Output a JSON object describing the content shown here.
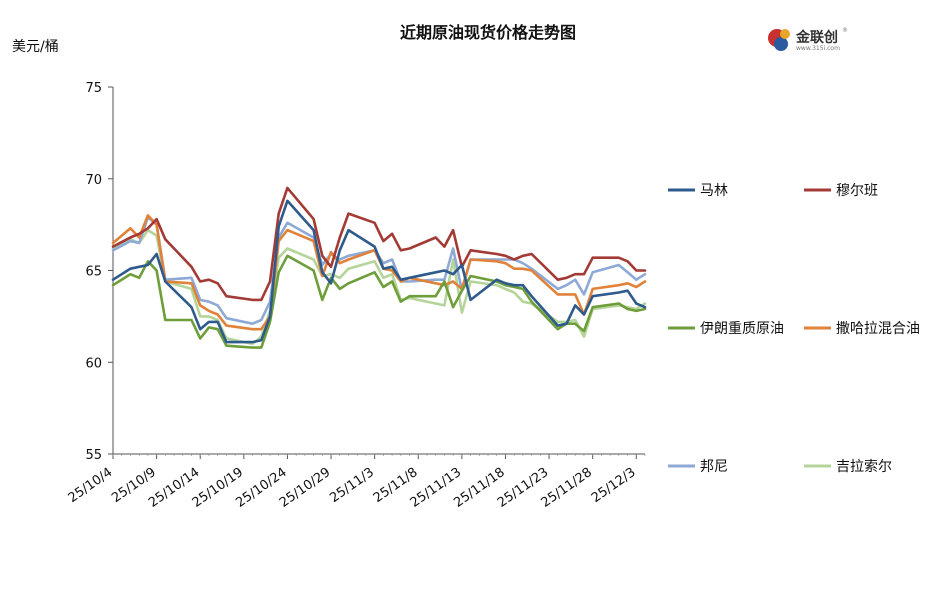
{
  "chart_data": {
    "type": "line",
    "title": "近期原油现货价格走势图",
    "ylabel": "美元/桶",
    "xlabel": "",
    "ylim": [
      55,
      75
    ],
    "yticks": [
      55,
      60,
      65,
      70,
      75
    ],
    "x_range": [
      "2025-10-04",
      "2025-12-04"
    ],
    "xticks": [
      {
        "date": "2025-10-04",
        "label": "25/10/4"
      },
      {
        "date": "2025-10-09",
        "label": "25/10/9"
      },
      {
        "date": "2025-10-14",
        "label": "25/10/14"
      },
      {
        "date": "2025-10-19",
        "label": "25/10/19"
      },
      {
        "date": "2025-10-24",
        "label": "25/10/24"
      },
      {
        "date": "2025-10-29",
        "label": "25/10/29"
      },
      {
        "date": "2025-11-03",
        "label": "25/11/3"
      },
      {
        "date": "2025-11-08",
        "label": "25/11/8"
      },
      {
        "date": "2025-11-13",
        "label": "25/11/13"
      },
      {
        "date": "2025-11-18",
        "label": "25/11/18"
      },
      {
        "date": "2025-11-23",
        "label": "25/11/23"
      },
      {
        "date": "2025-11-28",
        "label": "25/11/28"
      },
      {
        "date": "2025-12-03",
        "label": "25/12/3"
      }
    ],
    "grid": false,
    "legend_position": "right",
    "x": [
      "2025-10-04",
      "2025-10-06",
      "2025-10-07",
      "2025-10-08",
      "2025-10-09",
      "2025-10-10",
      "2025-10-13",
      "2025-10-14",
      "2025-10-15",
      "2025-10-16",
      "2025-10-17",
      "2025-10-20",
      "2025-10-21",
      "2025-10-22",
      "2025-10-23",
      "2025-10-24",
      "2025-10-27",
      "2025-10-28",
      "2025-10-29",
      "2025-10-30",
      "2025-10-31",
      "2025-11-03",
      "2025-11-04",
      "2025-11-05",
      "2025-11-06",
      "2025-11-07",
      "2025-11-10",
      "2025-11-11",
      "2025-11-12",
      "2025-11-13",
      "2025-11-14",
      "2025-11-17",
      "2025-11-18",
      "2025-11-19",
      "2025-11-20",
      "2025-11-21",
      "2025-11-24",
      "2025-11-25",
      "2025-11-26",
      "2025-11-27",
      "2025-11-28",
      "2025-12-01",
      "2025-12-02",
      "2025-12-03",
      "2025-12-04"
    ],
    "series": [
      {
        "name": "马林",
        "color": "#2e5a8c",
        "values": [
          64.5,
          65.1,
          65.2,
          65.3,
          65.9,
          64.4,
          63.0,
          61.8,
          62.2,
          62.2,
          61.1,
          61.1,
          61.2,
          62.5,
          67.4,
          68.8,
          67.2,
          64.9,
          64.3,
          66.1,
          67.2,
          66.3,
          65.1,
          65.2,
          64.5,
          64.6,
          64.9,
          65.0,
          64.8,
          65.3,
          63.4,
          64.5,
          64.3,
          64.2,
          64.2,
          63.6,
          62.0,
          62.1,
          63.1,
          62.6,
          63.6,
          63.8,
          63.9,
          63.2,
          63.0
        ]
      },
      {
        "name": "穆尔班",
        "color": "#a33a35",
        "values": [
          66.3,
          66.8,
          67.0,
          67.3,
          67.8,
          66.7,
          65.2,
          64.4,
          64.5,
          64.3,
          63.6,
          63.4,
          63.4,
          64.4,
          68.1,
          69.5,
          67.8,
          65.8,
          65.2,
          66.8,
          68.1,
          67.6,
          66.6,
          67.0,
          66.1,
          66.2,
          66.8,
          66.3,
          67.2,
          65.2,
          66.1,
          65.9,
          65.8,
          65.6,
          65.8,
          65.9,
          64.5,
          64.6,
          64.8,
          64.8,
          65.7,
          65.7,
          65.5,
          65.0,
          65.0
        ]
      },
      {
        "name": "伊朗重质原油",
        "color": "#6e9e3a",
        "values": [
          64.2,
          64.8,
          64.6,
          65.5,
          65.0,
          62.3,
          62.3,
          61.3,
          61.9,
          61.8,
          60.9,
          60.8,
          60.8,
          62.2,
          64.9,
          65.8,
          65.0,
          63.4,
          64.6,
          64.0,
          64.3,
          64.9,
          64.1,
          64.4,
          63.3,
          63.6,
          63.6,
          64.4,
          63.0,
          63.9,
          64.7,
          64.4,
          64.2,
          64.1,
          64.0,
          63.3,
          61.8,
          62.1,
          62.1,
          61.7,
          63.0,
          63.2,
          62.9,
          62.8,
          62.9
        ]
      },
      {
        "name": "撒哈拉混合油",
        "color": "#e0823a",
        "values": [
          66.5,
          67.3,
          66.8,
          68.0,
          67.5,
          64.4,
          64.3,
          63.1,
          62.8,
          62.6,
          62.0,
          61.8,
          61.8,
          62.5,
          66.6,
          67.2,
          66.6,
          64.7,
          66.0,
          65.4,
          65.6,
          66.1,
          65.1,
          65.0,
          64.4,
          64.6,
          64.3,
          64.2,
          64.4,
          64.0,
          65.6,
          65.5,
          65.4,
          65.1,
          65.1,
          65.0,
          63.7,
          63.7,
          63.7,
          62.6,
          64.0,
          64.2,
          64.3,
          64.1,
          64.4
        ]
      },
      {
        "name": "邦尼",
        "color": "#8ea9d6",
        "values": [
          66.1,
          66.6,
          66.5,
          67.9,
          67.5,
          64.5,
          64.6,
          63.4,
          63.3,
          63.1,
          62.4,
          62.1,
          62.3,
          63.3,
          66.8,
          67.6,
          66.8,
          65.3,
          65.9,
          65.6,
          65.8,
          66.1,
          65.4,
          65.6,
          64.4,
          64.4,
          64.5,
          64.5,
          66.2,
          63.9,
          65.6,
          65.6,
          65.6,
          65.6,
          65.4,
          65.1,
          64.0,
          64.2,
          64.5,
          63.7,
          64.9,
          65.3,
          64.9,
          64.5,
          64.8
        ]
      },
      {
        "name": "吉拉索尔",
        "color": "#b5d49a",
        "values": [
          66.2,
          66.7,
          66.5,
          67.2,
          66.9,
          64.4,
          64.0,
          62.5,
          62.5,
          62.3,
          61.3,
          61.0,
          61.4,
          62.8,
          65.7,
          66.2,
          65.6,
          64.7,
          64.8,
          64.6,
          65.1,
          65.5,
          64.6,
          64.8,
          63.4,
          63.5,
          63.2,
          63.1,
          65.6,
          62.7,
          64.4,
          64.2,
          64.0,
          63.8,
          63.3,
          63.2,
          62.2,
          62.2,
          62.3,
          61.4,
          62.9,
          63.1,
          63.0,
          62.9,
          63.2
        ]
      }
    ]
  },
  "logo": {
    "name": "金联创",
    "url_text": "www.315i.com"
  }
}
